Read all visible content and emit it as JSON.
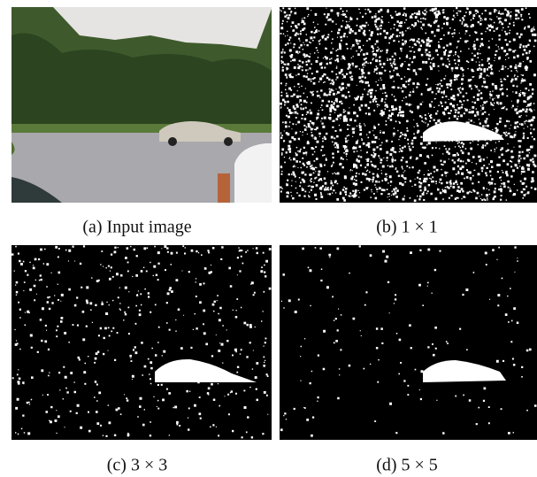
{
  "figure": {
    "panels": [
      {
        "caption": "(a) Input image"
      },
      {
        "caption": "(b) 1 × 1"
      },
      {
        "caption": "(c) 3 × 3"
      },
      {
        "caption": "(d) 5 × 5"
      }
    ]
  }
}
